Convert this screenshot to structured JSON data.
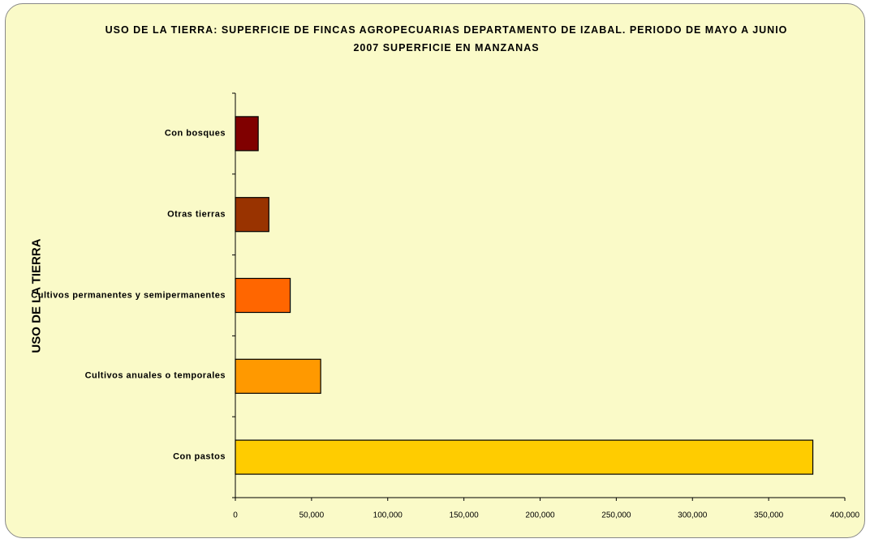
{
  "chart_data": {
    "type": "barh",
    "title": "USO DE LA TIERRA: SUPERFICIE DE FINCAS AGROPECUARIAS DEPARTAMENTO DE IZABAL. PERIODO DE MAYO A JUNIO 2007 SUPERFICIE EN MANZANAS",
    "y_label": "USO DE LA TIERRA",
    "categories": [
      "Con bosques",
      "Otras tierras",
      "Cultivos permanentes y semipermanentes",
      "Cultivos anuales o temporales",
      "Con pastos"
    ],
    "values": [
      15000,
      22000,
      36000,
      56000,
      379000
    ],
    "colors": [
      "#800000",
      "#993300",
      "#ff6600",
      "#ff9900",
      "#ffcc00"
    ],
    "xlim": [
      0,
      400000
    ],
    "xticks": [
      0,
      {
        "value": 50000,
        "label": "50,000"
      },
      {
        "value": 100000,
        "label": "100,000"
      },
      {
        "value": 150000,
        "label": "150,000"
      },
      {
        "value": 200000,
        "label": "200,000"
      },
      {
        "value": 250000,
        "label": "250,000"
      },
      {
        "value": 300000,
        "label": "300,000"
      },
      {
        "value": 350000,
        "label": "350,000"
      },
      {
        "value": 400000,
        "label": "400,000"
      }
    ],
    "grid": false
  }
}
